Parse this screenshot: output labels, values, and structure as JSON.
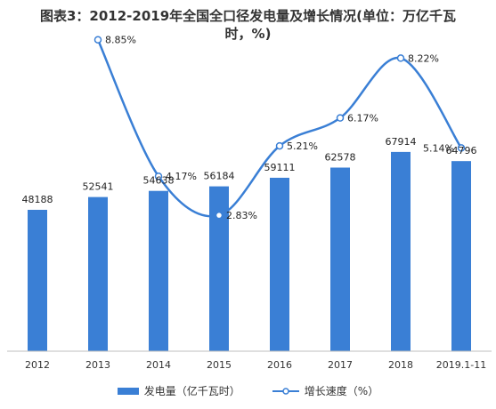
{
  "chart_data": {
    "type": "bar",
    "title_line1": "图表3：2012-2019年全国全口径发电量及增长情况(单位：万亿千瓦",
    "title_line2": "时，%)",
    "categories": [
      "2012",
      "2013",
      "2014",
      "2015",
      "2016",
      "2017",
      "2018",
      "2019.1-11"
    ],
    "series": [
      {
        "name": "发电量（亿千瓦时）",
        "type": "bar",
        "values": [
          48188,
          52541,
          54638,
          56184,
          59111,
          62578,
          67914,
          64796
        ],
        "color": "#3a7fd5"
      },
      {
        "name": "增长速度（%）",
        "type": "line",
        "values": [
          null,
          8.85,
          4.17,
          2.83,
          5.21,
          6.17,
          8.22,
          5.14
        ],
        "labels": [
          null,
          "8.85%",
          "4.17%",
          "2.83%",
          "5.21%",
          "6.17%",
          "8.22%",
          "5.14%"
        ],
        "color": "#3a7fd5"
      }
    ],
    "bar_ylim": [
      0,
      80000
    ],
    "line_ylim": [
      0,
      10
    ],
    "grid": false,
    "legend_position": "bottom"
  }
}
